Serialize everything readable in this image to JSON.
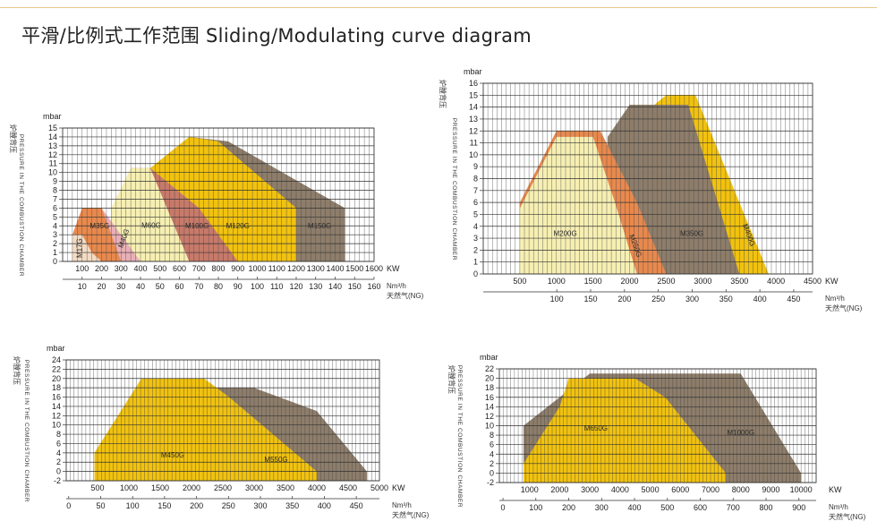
{
  "title": "平滑/比例式工作范围  Sliding/Modulating curve diagram",
  "colors": {
    "yellow": "#f1c20f",
    "gray": "#8d7d6a",
    "orange": "#e8894e",
    "peach": "#f3dcc4",
    "lightyellow": "#f6efb2",
    "pink": "#e8b0b6",
    "rose": "#c77a6a",
    "grid": "#3a3a3a"
  },
  "chart_data": [
    {
      "type": "area",
      "ylabel": "mbar",
      "side_label_en": "PRESSURE IN THE COMBUSTION CHAMBER",
      "side_label_cn": "炉膛背压",
      "kw_label": "KW",
      "ng_unit": "Nm³/h",
      "ng_label": "天然气(NG)",
      "xlim": [
        0,
        1600
      ],
      "ylim": [
        0,
        15
      ],
      "y_ticks": [
        0,
        1,
        2,
        3,
        4,
        5,
        6,
        7,
        8,
        9,
        10,
        11,
        12,
        13,
        14,
        15
      ],
      "kw_ticks": [
        100,
        200,
        300,
        400,
        500,
        600,
        700,
        800,
        900,
        1000,
        1100,
        1200,
        1300,
        1400,
        1500,
        1600
      ],
      "ng_ticks": [
        10,
        20,
        30,
        40,
        50,
        60,
        70,
        80,
        90,
        100,
        110,
        120,
        130,
        140,
        150,
        160
      ],
      "series": [
        {
          "name": "M150G",
          "color": "gray",
          "polygon": [
            [
              650,
              0
            ],
            [
              650,
              14
            ],
            [
              850,
              13.5
            ],
            [
              1450,
              6
            ],
            [
              1450,
              0
            ]
          ]
        },
        {
          "name": "M120G",
          "color": "yellow",
          "polygon": [
            [
              450,
              0
            ],
            [
              450,
              10.5
            ],
            [
              650,
              14
            ],
            [
              800,
              13.5
            ],
            [
              1200,
              6
            ],
            [
              1200,
              0
            ]
          ]
        },
        {
          "name": "M100G",
          "color": "rose",
          "polygon": [
            [
              350,
              0
            ],
            [
              350,
              10.5
            ],
            [
              450,
              10.5
            ],
            [
              700,
              6
            ],
            [
              900,
              0
            ]
          ]
        },
        {
          "name": "M60G",
          "color": "lightyellow",
          "polygon": [
            [
              250,
              0
            ],
            [
              250,
              6
            ],
            [
              350,
              10.5
            ],
            [
              450,
              10.5
            ],
            [
              650,
              0
            ]
          ]
        },
        {
          "name": "M40G",
          "color": "pink",
          "polygon": [
            [
              200,
              0
            ],
            [
              200,
              6
            ],
            [
              400,
              0
            ]
          ]
        },
        {
          "name": "M35G",
          "color": "orange",
          "polygon": [
            [
              50,
              0
            ],
            [
              50,
              3
            ],
            [
              100,
              6
            ],
            [
              200,
              6
            ],
            [
              300,
              0
            ]
          ]
        },
        {
          "name": "M17G",
          "color": "peach",
          "polygon": [
            [
              50,
              0
            ],
            [
              50,
              3
            ],
            [
              100,
              3
            ],
            [
              150,
              1
            ],
            [
              200,
              0
            ]
          ]
        }
      ],
      "labels": [
        {
          "text": "M17G",
          "x": 100,
          "y": 1.5,
          "rotate": -90
        },
        {
          "text": "M35G",
          "x": 190,
          "y": 3.7,
          "rotate": 0
        },
        {
          "text": "M40G",
          "x": 325,
          "y": 2.5,
          "rotate": -70
        },
        {
          "text": "M60G",
          "x": 455,
          "y": 3.8,
          "rotate": 0
        },
        {
          "text": "M100G",
          "x": 690,
          "y": 3.7,
          "rotate": 0
        },
        {
          "text": "M120G",
          "x": 900,
          "y": 3.7,
          "rotate": 0
        },
        {
          "text": "M150G",
          "x": 1320,
          "y": 3.7,
          "rotate": 0
        }
      ]
    },
    {
      "type": "area",
      "ylabel": "mbar",
      "side_label_en": "PRESSURE IN THE COMBUSTION CHAMBER",
      "side_label_cn": "炉膛背压",
      "kw_label": "KW",
      "ng_unit": "Nm³/h",
      "ng_label": "天然气(NG)",
      "xlim": [
        0,
        4500
      ],
      "ylim": [
        0,
        16
      ],
      "y_ticks": [
        0,
        1,
        2,
        3,
        4,
        5,
        6,
        7,
        8,
        9,
        10,
        11,
        12,
        13,
        14,
        15,
        16
      ],
      "kw_ticks": [
        500,
        1000,
        1500,
        2000,
        2500,
        3000,
        3500,
        4000,
        4500
      ],
      "ng_ticks": [
        100,
        150,
        200,
        250,
        300,
        350,
        400,
        450
      ],
      "series": [
        {
          "name": "M400G",
          "color": "yellow",
          "polygon": [
            [
              2300,
              0
            ],
            [
              2300,
              14
            ],
            [
              2500,
              15
            ],
            [
              2900,
              15
            ],
            [
              3900,
              0
            ]
          ]
        },
        {
          "name": "M350G",
          "color": "gray",
          "polygon": [
            [
              1700,
              0
            ],
            [
              1700,
              11.5
            ],
            [
              2000,
              14.2
            ],
            [
              2300,
              14.2
            ],
            [
              2800,
              14.2
            ],
            [
              3500,
              0
            ]
          ]
        },
        {
          "name": "M250G",
          "color": "orange",
          "polygon": [
            [
              500,
              0
            ],
            [
              500,
              6
            ],
            [
              1000,
              12
            ],
            [
              1600,
              12
            ],
            [
              2100,
              6
            ],
            [
              2500,
              0
            ]
          ]
        },
        {
          "name": "M200G",
          "color": "lightyellow",
          "polygon": [
            [
              500,
              0
            ],
            [
              500,
              5.5
            ],
            [
              1000,
              11.5
            ],
            [
              1500,
              11.5
            ],
            [
              1800,
              6
            ],
            [
              2100,
              0
            ]
          ]
        }
      ],
      "labels": [
        {
          "text": "M200G",
          "x": 1120,
          "y": 3.2,
          "rotate": 0
        },
        {
          "text": "M250G",
          "x": 2050,
          "y": 2.3,
          "rotate": 70
        },
        {
          "text": "M350G",
          "x": 2850,
          "y": 3.2,
          "rotate": 0
        },
        {
          "text": "M400G",
          "x": 3600,
          "y": 3.2,
          "rotate": 70
        }
      ]
    },
    {
      "type": "area",
      "ylabel": "mbar",
      "side_label_en": "PRESSURE IN THE COMBUSTION CHAMBER",
      "side_label_cn": "炉膛背压",
      "kw_label": "KW",
      "ng_unit": "Nm³/h",
      "ng_label": "天然气(NG)",
      "xlim": [
        0,
        5000
      ],
      "ylim": [
        -2,
        24
      ],
      "y_ticks": [
        -2,
        0,
        2,
        4,
        6,
        8,
        10,
        12,
        14,
        16,
        18,
        20,
        22,
        24
      ],
      "kw_ticks": [
        500,
        1000,
        1500,
        2000,
        2500,
        3000,
        3500,
        4000,
        4500,
        5000
      ],
      "ng_ticks": [
        0,
        50,
        100,
        150,
        200,
        250,
        300,
        350,
        400,
        450
      ],
      "series": [
        {
          "name": "M550G",
          "color": "gray",
          "polygon": [
            [
              1100,
              -2
            ],
            [
              1100,
              18
            ],
            [
              2300,
              18
            ],
            [
              3000,
              18
            ],
            [
              4000,
              13
            ],
            [
              4800,
              0
            ],
            [
              4800,
              -2
            ]
          ]
        },
        {
          "name": "M450G",
          "color": "yellow",
          "polygon": [
            [
              450,
              -2
            ],
            [
              450,
              4
            ],
            [
              1200,
              20
            ],
            [
              2200,
              20
            ],
            [
              2600,
              16
            ],
            [
              4000,
              0
            ],
            [
              4000,
              -2
            ]
          ]
        }
      ],
      "labels": [
        {
          "text": "M450G",
          "x": 1700,
          "y": 3.0,
          "rotate": 0
        },
        {
          "text": "M550G",
          "x": 3350,
          "y": 2.0,
          "rotate": 0
        }
      ]
    },
    {
      "type": "area",
      "ylabel": "mbar",
      "side_label_en": "PRESSURE IN THE COMBUSTION CHAMBER",
      "side_label_cn": "炉膛背压",
      "kw_label": "KW",
      "ng_unit": "Nm³/h",
      "ng_label": "天然气(NG)",
      "xlim": [
        0,
        10500
      ],
      "ylim": [
        -2,
        22
      ],
      "y_ticks": [
        -2,
        0,
        2,
        4,
        6,
        8,
        10,
        12,
        14,
        16,
        18,
        20,
        22
      ],
      "kw_ticks": [
        1000,
        2000,
        3000,
        4000,
        5000,
        6000,
        7000,
        8000,
        9000,
        10000
      ],
      "ng_ticks": [
        0,
        100,
        200,
        300,
        400,
        500,
        600,
        700,
        800,
        900
      ],
      "series": [
        {
          "name": "M1000G",
          "color": "gray",
          "polygon": [
            [
              800,
              -2
            ],
            [
              800,
              10
            ],
            [
              2000,
              16
            ],
            [
              3000,
              21
            ],
            [
              8000,
              21
            ],
            [
              10000,
              0
            ],
            [
              10000,
              -2
            ]
          ]
        },
        {
          "name": "M650G",
          "color": "yellow",
          "polygon": [
            [
              800,
              -2
            ],
            [
              800,
              2
            ],
            [
              2000,
              14
            ],
            [
              2300,
              20
            ],
            [
              4500,
              20
            ],
            [
              5500,
              16
            ],
            [
              7500,
              0
            ],
            [
              7500,
              -2
            ]
          ]
        }
      ],
      "labels": [
        {
          "text": "M650G",
          "x": 3200,
          "y": 9.0,
          "rotate": 0
        },
        {
          "text": "M1000G",
          "x": 8000,
          "y": 8.0,
          "rotate": 0
        }
      ]
    }
  ]
}
